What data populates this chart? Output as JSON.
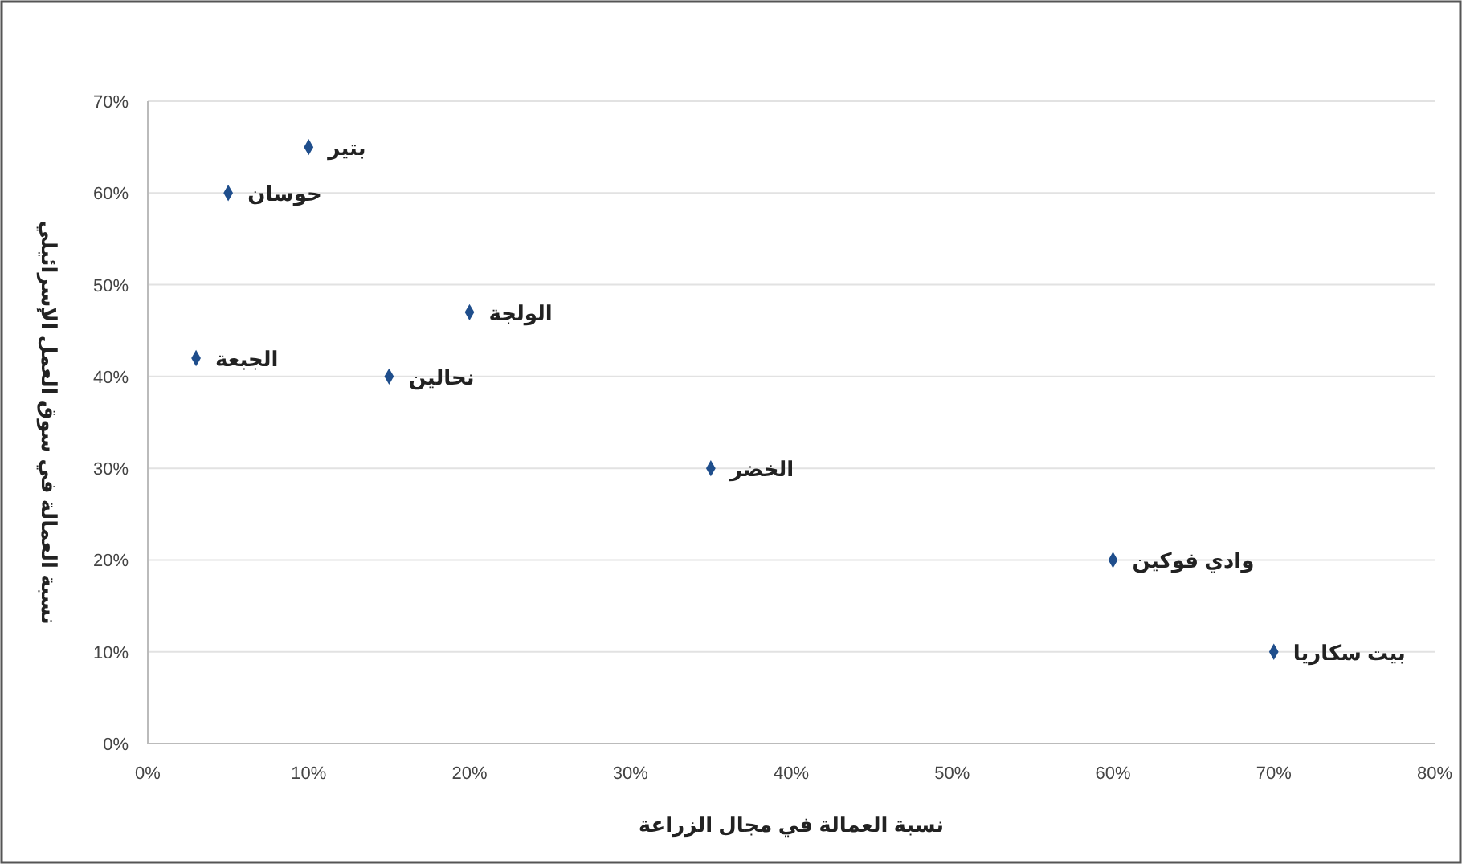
{
  "chart_data": {
    "type": "scatter",
    "xlabel": "نسبة العمالة في مجال الزراعة",
    "ylabel": "نسبة العمالة في سوق العمل الإسرائيلي",
    "x": [
      3,
      5,
      10,
      15,
      20,
      35,
      60,
      70
    ],
    "series": [
      {
        "color": "#1f4e8c",
        "values": [
          42,
          60,
          65,
          40,
          47,
          30,
          20,
          10
        ]
      }
    ],
    "annotations": [
      {
        "text": "الجبعة",
        "x": 3,
        "y": 42
      },
      {
        "text": "حوسان",
        "x": 5,
        "y": 60
      },
      {
        "text": "بتير",
        "x": 10,
        "y": 65
      },
      {
        "text": "نحالين",
        "x": 15,
        "y": 40
      },
      {
        "text": "الولجة",
        "x": 20,
        "y": 47
      },
      {
        "text": "الخضر",
        "x": 35,
        "y": 30
      },
      {
        "text": "وادي فوكين",
        "x": 60,
        "y": 20
      },
      {
        "text": "بيت سكاريا",
        "x": 70,
        "y": 10
      }
    ],
    "xlim": [
      0,
      80
    ],
    "ylim": [
      0,
      70
    ],
    "xticks": [
      {
        "value": 0,
        "label": "0%"
      },
      {
        "value": 10,
        "label": "10%"
      },
      {
        "value": 20,
        "label": "20%"
      },
      {
        "value": 30,
        "label": "30%"
      },
      {
        "value": 40,
        "label": "40%"
      },
      {
        "value": 50,
        "label": "50%"
      },
      {
        "value": 60,
        "label": "60%"
      },
      {
        "value": 70,
        "label": "70%"
      },
      {
        "value": 80,
        "label": "80%"
      }
    ],
    "yticks": [
      {
        "value": 0,
        "label": "0%"
      },
      {
        "value": 10,
        "label": "10%"
      },
      {
        "value": 20,
        "label": "20%"
      },
      {
        "value": 30,
        "label": "30%"
      },
      {
        "value": 40,
        "label": "40%"
      },
      {
        "value": 50,
        "label": "50%"
      },
      {
        "value": 60,
        "label": "60%"
      },
      {
        "value": 70,
        "label": "70%"
      }
    ],
    "grid": "y",
    "marker": "diamond"
  }
}
